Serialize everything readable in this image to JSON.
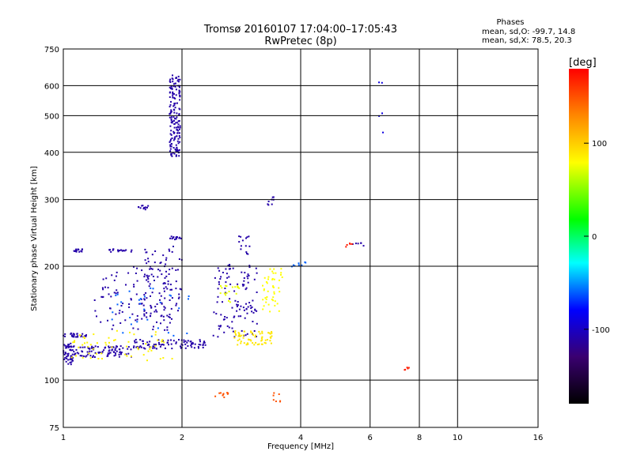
{
  "chart_data": {
    "type": "scatter",
    "title": "Tromsø 20160107 17:04:00–17:05:43",
    "subtitle": "RwPretec (8p)",
    "xlabel": "Frequency [MHz]",
    "ylabel": "Stationary phase Virtual Height [km]",
    "x_scale": "log",
    "y_scale": "log",
    "xlim": [
      1,
      16
    ],
    "ylim": [
      75,
      750
    ],
    "x_ticks": [
      1,
      2,
      4,
      6,
      8,
      10,
      16
    ],
    "y_ticks": [
      75,
      100,
      200,
      300,
      400,
      500,
      600,
      750
    ],
    "grid": true,
    "phases_box": {
      "heading": "Phases",
      "line1": "mean, sd,O: -99.7, 14.8",
      "line2": "mean, sd,X:  78.5, 20.3"
    },
    "colorbar": {
      "label": "[deg]",
      "range": [
        -180,
        180
      ],
      "ticks": [
        100,
        0,
        -100
      ],
      "tick_labels": [
        "100",
        "0",
        "-100"
      ]
    },
    "clusters": [
      {
        "phase": -110,
        "x": [
          1.0,
          1.07
        ],
        "y": [
          110,
          125
        ],
        "n": 55
      },
      {
        "phase": -110,
        "x": [
          1.07,
          1.5
        ],
        "y": [
          115,
          123
        ],
        "n": 90
      },
      {
        "phase": -110,
        "x": [
          1.5,
          2.3
        ],
        "y": [
          121,
          128
        ],
        "n": 90
      },
      {
        "phase": -110,
        "x": [
          1.0,
          1.15
        ],
        "y": [
          130,
          133
        ],
        "n": 25
      },
      {
        "phase": -110,
        "x": [
          1.2,
          1.9
        ],
        "y": [
          135,
          200
        ],
        "n": 110
      },
      {
        "phase": -110,
        "x": [
          1.6,
          2.0
        ],
        "y": [
          145,
          230
        ],
        "n": 80
      },
      {
        "phase": -110,
        "x": [
          1.02,
          1.12
        ],
        "y": [
          218,
          222
        ],
        "n": 14
      },
      {
        "phase": -110,
        "x": [
          1.3,
          1.5
        ],
        "y": [
          218,
          222
        ],
        "n": 18
      },
      {
        "phase": -110,
        "x": [
          1.55,
          1.65
        ],
        "y": [
          282,
          290
        ],
        "n": 12
      },
      {
        "phase": -110,
        "x": [
          1.85,
          2.0
        ],
        "y": [
          235,
          240
        ],
        "n": 14
      },
      {
        "phase": -110,
        "x": [
          1.86,
          1.98
        ],
        "y": [
          390,
          640
        ],
        "n": 170
      },
      {
        "phase": -110,
        "x": [
          2.4,
          3.1
        ],
        "y": [
          130,
          210
        ],
        "n": 110
      },
      {
        "phase": -110,
        "x": [
          2.75,
          3.0
        ],
        "y": [
          215,
          240
        ],
        "n": 14
      },
      {
        "phase": -110,
        "x": [
          3.25,
          3.45
        ],
        "y": [
          290,
          305
        ],
        "n": 8
      },
      {
        "phase": 90,
        "x": [
          2.7,
          3.4
        ],
        "y": [
          124,
          135
        ],
        "n": 65
      },
      {
        "phase": 80,
        "x": [
          3.2,
          3.6
        ],
        "y": [
          150,
          200
        ],
        "n": 45
      },
      {
        "phase": 75,
        "x": [
          2.5,
          2.8
        ],
        "y": [
          160,
          180
        ],
        "n": 18
      },
      {
        "phase": 150,
        "x": [
          2.4,
          2.7
        ],
        "y": [
          90,
          95
        ],
        "n": 10
      },
      {
        "phase": 150,
        "x": [
          3.4,
          3.55
        ],
        "y": [
          86,
          94
        ],
        "n": 7
      },
      {
        "phase": 85,
        "x": [
          1.05,
          1.9
        ],
        "y": [
          112,
          135
        ],
        "n": 60
      },
      {
        "phase": -60,
        "x": [
          1.3,
          2.1
        ],
        "y": [
          130,
          175
        ],
        "n": 30
      },
      {
        "phase": -60,
        "x": [
          3.8,
          4.2
        ],
        "y": [
          195,
          205
        ],
        "n": 8
      },
      {
        "phase": -110,
        "x": [
          5.4,
          5.8
        ],
        "y": [
          225,
          232
        ],
        "n": 6
      },
      {
        "phase": 170,
        "x": [
          5.2,
          5.4
        ],
        "y": [
          225,
          230
        ],
        "n": 5
      },
      {
        "phase": 170,
        "x": [
          7.3,
          7.6
        ],
        "y": [
          106,
          108
        ],
        "n": 5
      },
      {
        "phase": -90,
        "x": [
          6.3,
          6.6
        ],
        "y": [
          450,
          620
        ],
        "n": 5
      }
    ]
  }
}
